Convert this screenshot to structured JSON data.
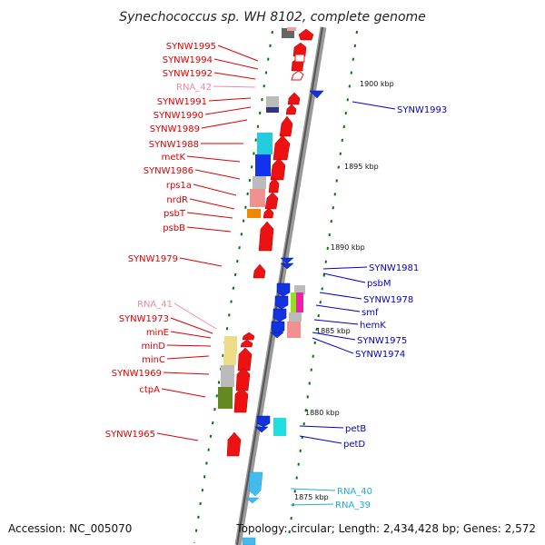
{
  "title": "Synechococcus sp. WH 8102, complete genome",
  "footer": {
    "accession": "Accession: NC_005070",
    "topology": "Topology: circular; Length: 2,434,428 bp; Genes: 2,572"
  },
  "colors": {
    "gene_label_left": "#dd0000",
    "gene_label_right": "#0000cc",
    "rna_label_left": "#f08aa0",
    "rna_label_right": "#22aadd",
    "backbone": "#888888",
    "tick": "#007700"
  },
  "kbp_ticks": [
    "1900 kbp",
    "1895 kbp",
    "1890 kbp",
    "1885 kbp",
    "1880 kbp",
    "1875 kbp"
  ],
  "left_labels": [
    "SYNW1995",
    "SYNW1994",
    "SYNW1992",
    "RNA_42",
    "SYNW1991",
    "SYNW1990",
    "SYNW1989",
    "SYNW1988",
    "metK",
    "SYNW1986",
    "rps1a",
    "nrdR",
    "psbT",
    "psbB",
    "SYNW1979",
    "RNA_41",
    "SYNW1973",
    "minE",
    "minD",
    "minC",
    "SYNW1969",
    "ctpA",
    "SYNW1965"
  ],
  "right_labels": [
    "SYNW1993",
    "SYNW1981",
    "psbM",
    "SYNW1978",
    "smf",
    "hemK",
    "SYNW1975",
    "SYNW1974",
    "petB",
    "petD",
    "RNA_40",
    "RNA_39"
  ]
}
